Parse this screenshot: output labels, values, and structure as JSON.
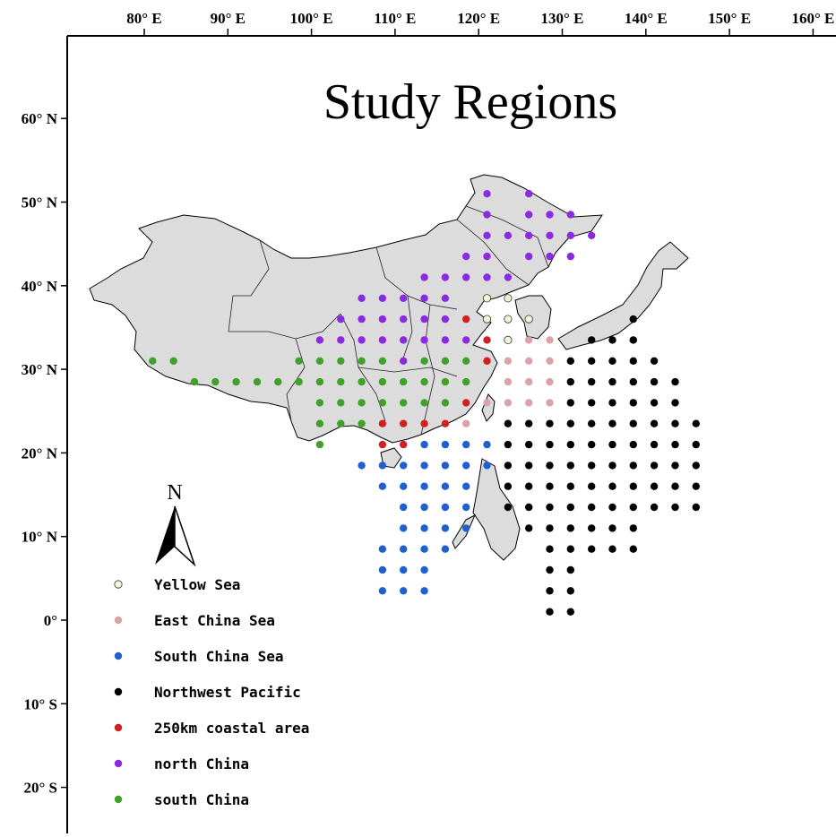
{
  "title": "Study Regions",
  "north_arrow_label": "N",
  "x_ticks": [
    {
      "value": 80,
      "label": "80° E"
    },
    {
      "value": 90,
      "label": "90° E"
    },
    {
      "value": 100,
      "label": "100° E"
    },
    {
      "value": 110,
      "label": "110° E"
    },
    {
      "value": 120,
      "label": "120° E"
    },
    {
      "value": 130,
      "label": "130° E"
    },
    {
      "value": 140,
      "label": "140° E"
    },
    {
      "value": 150,
      "label": "150° E"
    },
    {
      "value": 160,
      "label": "160° E"
    }
  ],
  "y_ticks": [
    {
      "value": 60,
      "label": "60° N"
    },
    {
      "value": 50,
      "label": "50° N"
    },
    {
      "value": 40,
      "label": "40° N"
    },
    {
      "value": 30,
      "label": "30° N"
    },
    {
      "value": 20,
      "label": "20° N"
    },
    {
      "value": 10,
      "label": "10° N"
    },
    {
      "value": 0,
      "label": "0°"
    },
    {
      "value": -10,
      "label": "10° S"
    },
    {
      "value": -20,
      "label": "20° S"
    }
  ],
  "legend": [
    {
      "id": "yellow",
      "label": "Yellow Sea",
      "color": "#f5f5dc"
    },
    {
      "id": "ecs",
      "label": "East China Sea",
      "color": "#d9a3a8"
    },
    {
      "id": "scs",
      "label": "South China Sea",
      "color": "#1f5fd0"
    },
    {
      "id": "nwp",
      "label": "Northwest Pacific",
      "color": "#000000"
    },
    {
      "id": "coastal",
      "label": "250km coastal area",
      "color": "#d02020"
    },
    {
      "id": "north",
      "label": "north China",
      "color": "#8a2be2"
    },
    {
      "id": "south",
      "label": "south China",
      "color": "#3fa02a"
    }
  ],
  "colors": {
    "land": "#dcdcdc",
    "frame": "#000000",
    "background": "#ffffff"
  },
  "points": {
    "yellow": [
      [
        121,
        38.5
      ],
      [
        123.5,
        38.5
      ],
      [
        121,
        36
      ],
      [
        123.5,
        36
      ],
      [
        126,
        36
      ],
      [
        123.5,
        33.5
      ]
    ],
    "ecs": [
      [
        126,
        33.5
      ],
      [
        128.5,
        33.5
      ],
      [
        121,
        31
      ],
      [
        123.5,
        31
      ],
      [
        126,
        31
      ],
      [
        128.5,
        31
      ],
      [
        123.5,
        28.5
      ],
      [
        126,
        28.5
      ],
      [
        128.5,
        28.5
      ],
      [
        121,
        26
      ],
      [
        123.5,
        26
      ],
      [
        126,
        26
      ],
      [
        128.5,
        26
      ],
      [
        118.5,
        23.5
      ]
    ],
    "coastal": [
      [
        118.5,
        36
      ],
      [
        121,
        33.5
      ],
      [
        121,
        31
      ],
      [
        118.5,
        26
      ],
      [
        108.5,
        23.5
      ],
      [
        111,
        23.5
      ],
      [
        113.5,
        23.5
      ],
      [
        116,
        23.5
      ],
      [
        108.5,
        21
      ],
      [
        111,
        21
      ]
    ],
    "north": [
      [
        121,
        51
      ],
      [
        126,
        51
      ],
      [
        121,
        48.5
      ],
      [
        126,
        48.5
      ],
      [
        128.5,
        48.5
      ],
      [
        131,
        48.5
      ],
      [
        121,
        46
      ],
      [
        123.5,
        46
      ],
      [
        126,
        46
      ],
      [
        128.5,
        46
      ],
      [
        131,
        46
      ],
      [
        133.5,
        46
      ],
      [
        118.5,
        43.5
      ],
      [
        121,
        43.5
      ],
      [
        126,
        43.5
      ],
      [
        128.5,
        43.5
      ],
      [
        131,
        43.5
      ],
      [
        113.5,
        41
      ],
      [
        116,
        41
      ],
      [
        118.5,
        41
      ],
      [
        121,
        41
      ],
      [
        123.5,
        41
      ],
      [
        106,
        38.5
      ],
      [
        108.5,
        38.5
      ],
      [
        111,
        38.5
      ],
      [
        113.5,
        38.5
      ],
      [
        116,
        38.5
      ],
      [
        103.5,
        36
      ],
      [
        106,
        36
      ],
      [
        108.5,
        36
      ],
      [
        111,
        36
      ],
      [
        113.5,
        36
      ],
      [
        116,
        36
      ],
      [
        101,
        33.5
      ],
      [
        103.5,
        33.5
      ],
      [
        106,
        33.5
      ],
      [
        108.5,
        33.5
      ],
      [
        111,
        33.5
      ],
      [
        113.5,
        33.5
      ],
      [
        116,
        33.5
      ],
      [
        118.5,
        33.5
      ],
      [
        111,
        31
      ]
    ],
    "south": [
      [
        81,
        31
      ],
      [
        83.5,
        31
      ],
      [
        86,
        28.5
      ],
      [
        88.5,
        28.5
      ],
      [
        91,
        28.5
      ],
      [
        93.5,
        28.5
      ],
      [
        96,
        28.5
      ],
      [
        98.5,
        31
      ],
      [
        101,
        31
      ],
      [
        103.5,
        31
      ],
      [
        106,
        31
      ],
      [
        108.5,
        31
      ],
      [
        113.5,
        31
      ],
      [
        116,
        31
      ],
      [
        118.5,
        31
      ],
      [
        98.5,
        28.5
      ],
      [
        101,
        28.5
      ],
      [
        103.5,
        28.5
      ],
      [
        106,
        28.5
      ],
      [
        108.5,
        28.5
      ],
      [
        111,
        28.5
      ],
      [
        113.5,
        28.5
      ],
      [
        116,
        28.5
      ],
      [
        118.5,
        28.5
      ],
      [
        101,
        26
      ],
      [
        103.5,
        26
      ],
      [
        106,
        26
      ],
      [
        108.5,
        26
      ],
      [
        111,
        26
      ],
      [
        113.5,
        26
      ],
      [
        116,
        26
      ],
      [
        101,
        23.5
      ],
      [
        103.5,
        23.5
      ],
      [
        106,
        23.5
      ],
      [
        101,
        21
      ]
    ],
    "scs": [
      [
        106,
        18.5
      ],
      [
        108.5,
        18.5
      ],
      [
        111,
        18.5
      ],
      [
        113.5,
        18.5
      ],
      [
        116,
        18.5
      ],
      [
        118.5,
        18.5
      ],
      [
        121,
        18.5
      ],
      [
        113.5,
        21
      ],
      [
        116,
        21
      ],
      [
        118.5,
        21
      ],
      [
        121,
        21
      ],
      [
        108.5,
        16
      ],
      [
        111,
        16
      ],
      [
        113.5,
        16
      ],
      [
        116,
        16
      ],
      [
        118.5,
        16
      ],
      [
        111,
        13.5
      ],
      [
        113.5,
        13.5
      ],
      [
        116,
        13.5
      ],
      [
        118.5,
        13.5
      ],
      [
        111,
        11
      ],
      [
        113.5,
        11
      ],
      [
        116,
        11
      ],
      [
        118.5,
        11
      ],
      [
        108.5,
        8.5
      ],
      [
        111,
        8.5
      ],
      [
        113.5,
        8.5
      ],
      [
        116,
        8.5
      ],
      [
        108.5,
        6
      ],
      [
        111,
        6
      ],
      [
        113.5,
        6
      ],
      [
        108.5,
        3.5
      ],
      [
        111,
        3.5
      ],
      [
        113.5,
        3.5
      ]
    ],
    "nwp": [
      [
        138.5,
        36
      ],
      [
        133.5,
        33.5
      ],
      [
        136,
        33.5
      ],
      [
        138.5,
        33.5
      ],
      [
        131,
        31
      ],
      [
        133.5,
        31
      ],
      [
        136,
        31
      ],
      [
        138.5,
        31
      ],
      [
        141,
        31
      ],
      [
        131,
        28.5
      ],
      [
        133.5,
        28.5
      ],
      [
        136,
        28.5
      ],
      [
        138.5,
        28.5
      ],
      [
        141,
        28.5
      ],
      [
        143.5,
        28.5
      ],
      [
        131,
        26
      ],
      [
        133.5,
        26
      ],
      [
        136,
        26
      ],
      [
        138.5,
        26
      ],
      [
        141,
        26
      ],
      [
        143.5,
        26
      ],
      [
        123.5,
        23.5
      ],
      [
        126,
        23.5
      ],
      [
        128.5,
        23.5
      ],
      [
        131,
        23.5
      ],
      [
        133.5,
        23.5
      ],
      [
        136,
        23.5
      ],
      [
        138.5,
        23.5
      ],
      [
        141,
        23.5
      ],
      [
        143.5,
        23.5
      ],
      [
        146,
        23.5
      ],
      [
        123.5,
        21
      ],
      [
        126,
        21
      ],
      [
        128.5,
        21
      ],
      [
        131,
        21
      ],
      [
        133.5,
        21
      ],
      [
        136,
        21
      ],
      [
        138.5,
        21
      ],
      [
        141,
        21
      ],
      [
        143.5,
        21
      ],
      [
        146,
        21
      ],
      [
        123.5,
        18.5
      ],
      [
        126,
        18.5
      ],
      [
        128.5,
        18.5
      ],
      [
        131,
        18.5
      ],
      [
        133.5,
        18.5
      ],
      [
        136,
        18.5
      ],
      [
        138.5,
        18.5
      ],
      [
        141,
        18.5
      ],
      [
        143.5,
        18.5
      ],
      [
        146,
        18.5
      ],
      [
        123.5,
        16
      ],
      [
        126,
        16
      ],
      [
        128.5,
        16
      ],
      [
        131,
        16
      ],
      [
        133.5,
        16
      ],
      [
        136,
        16
      ],
      [
        138.5,
        16
      ],
      [
        141,
        16
      ],
      [
        143.5,
        16
      ],
      [
        146,
        16
      ],
      [
        123.5,
        13.5
      ],
      [
        126,
        13.5
      ],
      [
        128.5,
        13.5
      ],
      [
        131,
        13.5
      ],
      [
        133.5,
        13.5
      ],
      [
        136,
        13.5
      ],
      [
        138.5,
        13.5
      ],
      [
        141,
        13.5
      ],
      [
        143.5,
        13.5
      ],
      [
        146,
        13.5
      ],
      [
        126,
        11
      ],
      [
        128.5,
        11
      ],
      [
        131,
        11
      ],
      [
        133.5,
        11
      ],
      [
        136,
        11
      ],
      [
        138.5,
        11
      ],
      [
        128.5,
        8.5
      ],
      [
        131,
        8.5
      ],
      [
        133.5,
        8.5
      ],
      [
        136,
        8.5
      ],
      [
        138.5,
        8.5
      ],
      [
        128.5,
        6
      ],
      [
        131,
        6
      ],
      [
        128.5,
        3.5
      ],
      [
        131,
        3.5
      ],
      [
        128.5,
        1
      ],
      [
        131,
        1
      ]
    ]
  }
}
